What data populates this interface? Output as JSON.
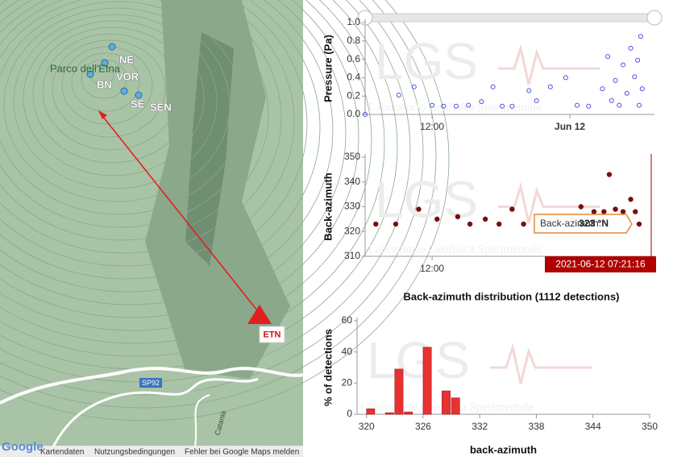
{
  "map": {
    "park": "Parco dell'Etna",
    "stations": [
      "NE",
      "VOR",
      "BN",
      "SE",
      "SEN"
    ],
    "array": "ETN",
    "road": "SP92",
    "town": "Catania",
    "footer": {
      "logo": "Google",
      "data": "Kartendaten",
      "terms": "Nutzungsbedingungen",
      "report": "Fehler bei Google Maps melden"
    }
  },
  "watermark": {
    "logo": "LGS",
    "name": "Laboratorio Geofisica Sperimentale"
  },
  "chart_data": [
    {
      "type": "scatter",
      "ylabel": "Pressure (Pa)",
      "color": "#4a4ae8",
      "x": [
        "2021-06-11T06:10",
        "2021-06-11T09:06",
        "2021-06-11T10:26",
        "2021-06-11T12:00",
        "2021-06-11T13:00",
        "2021-06-11T14:06",
        "2021-06-11T15:10",
        "2021-06-11T16:18",
        "2021-06-11T17:18",
        "2021-06-11T18:06",
        "2021-06-11T18:58",
        "2021-06-11T20:26",
        "2021-06-11T21:06",
        "2021-06-11T22:18",
        "2021-06-11T23:38",
        "2021-06-12T00:38",
        "2021-06-12T01:38",
        "2021-06-12T02:50",
        "2021-06-12T03:18",
        "2021-06-12T03:38",
        "2021-06-12T03:58",
        "2021-06-12T04:18",
        "2021-06-12T04:38",
        "2021-06-12T04:58",
        "2021-06-12T05:18",
        "2021-06-12T05:38",
        "2021-06-12T05:54",
        "2021-06-12T06:10",
        "2021-06-12T06:18",
        "2021-06-12T06:02"
      ],
      "values": [
        0.0,
        0.21,
        0.3,
        0.1,
        0.09,
        0.09,
        0.1,
        0.14,
        0.3,
        0.09,
        0.09,
        0.26,
        0.15,
        0.3,
        0.4,
        0.1,
        0.09,
        0.28,
        0.63,
        0.15,
        0.37,
        0.1,
        0.54,
        0.23,
        0.72,
        0.41,
        0.59,
        0.85,
        0.28,
        0.1
      ],
      "xlim": [
        "2021-06-11T06:10",
        "2021-06-12T07:22"
      ],
      "xticks": [
        {
          "value": "2021-06-11T12:00",
          "label": "12:00"
        },
        {
          "value": "2021-06-12T00:00",
          "label": "Jun 12"
        }
      ],
      "ylim": [
        0,
        1
      ],
      "yticks": [
        {
          "value": 0,
          "label": "0.0"
        },
        0.2,
        0.4,
        0.6,
        0.8,
        {
          "value": 1,
          "label": "1.0"
        }
      ]
    },
    {
      "type": "scatter",
      "ylabel": "Back-azimuth",
      "color": "#7a0e0e",
      "x": [
        "2021-06-11T07:06",
        "2021-06-11T08:50",
        "2021-06-11T10:50",
        "2021-06-11T12:26",
        "2021-06-11T14:14",
        "2021-06-11T15:18",
        "2021-06-11T16:38",
        "2021-06-11T17:50",
        "2021-06-11T18:58",
        "2021-06-11T19:58",
        "2021-06-11T21:58",
        "2021-06-11T23:38",
        "2021-06-12T00:58",
        "2021-06-12T02:06",
        "2021-06-12T02:58",
        "2021-06-12T03:26",
        "2021-06-12T03:58",
        "2021-06-12T04:38",
        "2021-06-12T05:18",
        "2021-06-12T05:42",
        "2021-06-12T06:02"
      ],
      "values": [
        323,
        323,
        329,
        325,
        326,
        323,
        325,
        323,
        329,
        323,
        326,
        325,
        330,
        328,
        328,
        343,
        329,
        328,
        333,
        328,
        323
      ],
      "xlim": [
        "2021-06-11T06:10",
        "2021-06-12T07:22"
      ],
      "xticks": [
        {
          "value": "2021-06-11T12:00",
          "label": "12:00"
        }
      ],
      "ylim": [
        310,
        350
      ],
      "yticks": [
        310,
        320,
        330,
        340,
        350
      ],
      "tooltip": {
        "label": "Back-azimuth:",
        "value": "323 °N"
      },
      "crosshair_label": "2021-06-12 07:21:16"
    },
    {
      "type": "histogram",
      "title": "Back-azimuth distribution (1112 detections)",
      "xlabel": "back-azimuth",
      "ylabel": "% of detections",
      "color": "#e83232",
      "bins": [
        320,
        321,
        322,
        323,
        324,
        325,
        326,
        327,
        328,
        329,
        330,
        331,
        332,
        333,
        334,
        335,
        336,
        337,
        338,
        339,
        340,
        341,
        342,
        343,
        344,
        345,
        346,
        347,
        348,
        349,
        350
      ],
      "values": [
        3.5,
        0,
        1,
        29,
        1.5,
        0,
        43,
        0,
        15,
        10.5,
        0,
        0,
        0,
        0,
        0,
        0,
        0,
        0,
        0,
        0,
        0,
        0,
        0,
        0,
        0,
        0,
        0,
        0,
        0,
        0
      ],
      "xlim": [
        319,
        350
      ],
      "xticks": [
        320,
        326,
        332,
        338,
        344,
        350
      ],
      "ylim": [
        0,
        60
      ],
      "yticks": [
        0,
        20,
        40,
        60
      ]
    }
  ]
}
